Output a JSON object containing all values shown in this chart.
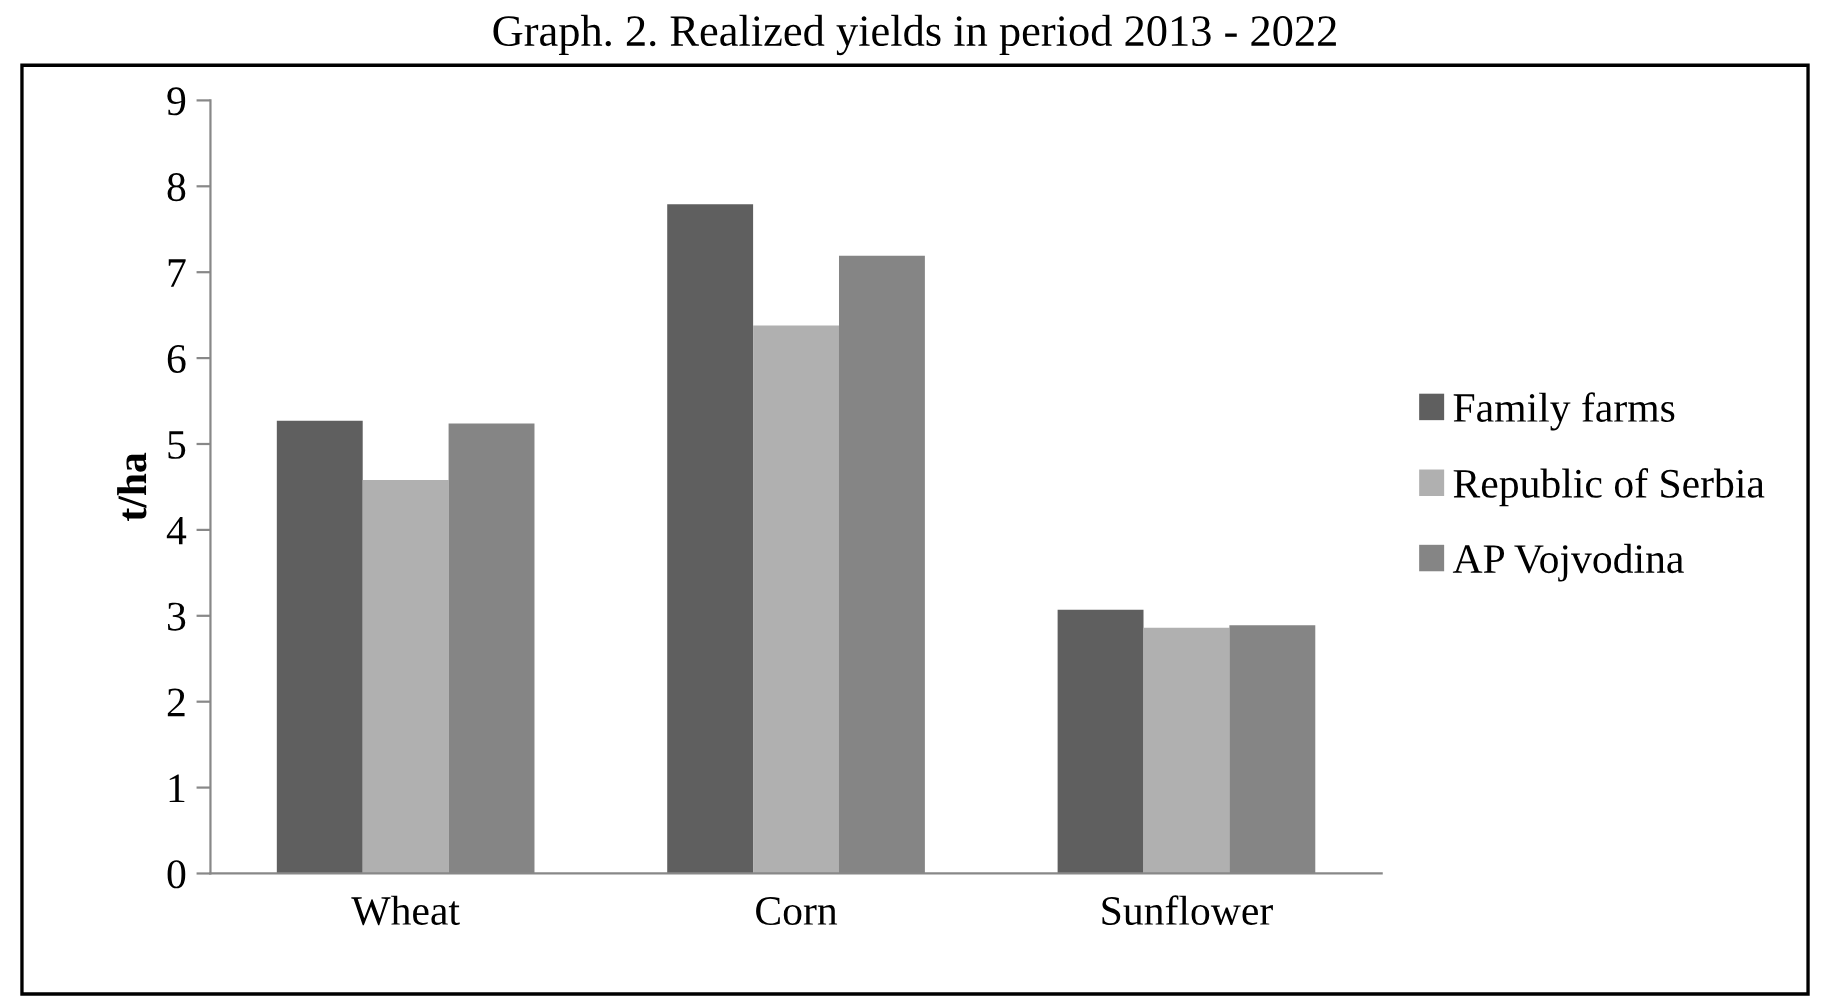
{
  "chart_data": {
    "type": "bar",
    "title": "Graph. 2. Realized yields in period 2013 - 2022",
    "ylabel": "t/ha",
    "categories": [
      "Wheat",
      "Corn",
      "Sunflower"
    ],
    "series": [
      {
        "name": "Family farms",
        "color": "#5f5f5f",
        "values": [
          5.27,
          7.79,
          3.07
        ]
      },
      {
        "name": "Republic of Serbia",
        "color": "#b0b0b0",
        "values": [
          4.58,
          6.38,
          2.86
        ]
      },
      {
        "name": "AP Vojvodina",
        "color": "#858585",
        "values": [
          5.24,
          7.19,
          2.89
        ]
      }
    ],
    "ylim": [
      0,
      9
    ],
    "yticks": [
      0,
      1,
      2,
      3,
      4,
      5,
      6,
      7,
      8,
      9
    ],
    "grid": false,
    "legend": "right"
  }
}
